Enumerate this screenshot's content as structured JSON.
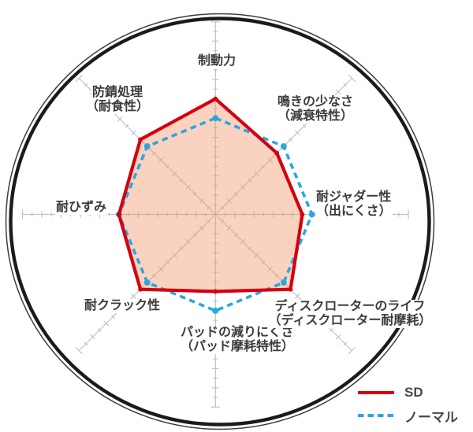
{
  "chart_data": {
    "type": "radar",
    "title": "",
    "categories": [
      "制動力",
      "鳴きの少なさ（減衰特性）",
      "耐ジャダー性（出にくさ）",
      "ディスクローターのライフ（ディスクローター耐摩耗）",
      "パッドの減りにくさ（パッド摩耗特性）",
      "耐クラック性",
      "耐ひずみ",
      "防錆処理（耐食性）"
    ],
    "axis_order": "clockwise from top",
    "scale": {
      "min": 0,
      "max": 10,
      "major_tick_step": 1,
      "minor_tick_step": 0.5,
      "grid": "radial ticks"
    },
    "series": [
      {
        "name": "SD",
        "line_style": "solid",
        "color": "#d4000f",
        "fill": "#f2986a",
        "fill_opacity": 0.43,
        "values": [
          6,
          4.5,
          4.5,
          5.5,
          4,
          5.5,
          5,
          5.5
        ]
      },
      {
        "name": "ノーマル",
        "line_style": "dashed",
        "color": "#2aa7e0",
        "fill": "none",
        "values": [
          5,
          5,
          5,
          5,
          5,
          5,
          5,
          5
        ]
      }
    ],
    "legend_position": "bottom-right"
  },
  "axis_labels": {
    "braking": {
      "lines": [
        "制動力"
      ]
    },
    "squeal": {
      "lines": [
        "鳴きの少なさ",
        "（減衰特性）"
      ]
    },
    "judder": {
      "lines": [
        "耐ジャダー性",
        "（出にくさ）"
      ]
    },
    "rotor_life": {
      "lines": [
        "ディスクローターのライフ",
        "（ディスクローター耐摩耗）"
      ]
    },
    "pad_wear": {
      "lines": [
        "パッドの減りにくさ",
        "（パッド摩耗特性）"
      ]
    },
    "crack": {
      "lines": [
        "耐クラック性"
      ]
    },
    "strain": {
      "lines": [
        "耐ひずみ"
      ]
    },
    "rust": {
      "lines": [
        "防錆処理",
        "（耐食性）"
      ]
    }
  },
  "colors": {
    "grid": "#b6c3ce",
    "outer_ring": "#1b1b1b",
    "label_text": "#3e3a39",
    "legend_text": "#4b4747",
    "background": "#ffffff"
  }
}
